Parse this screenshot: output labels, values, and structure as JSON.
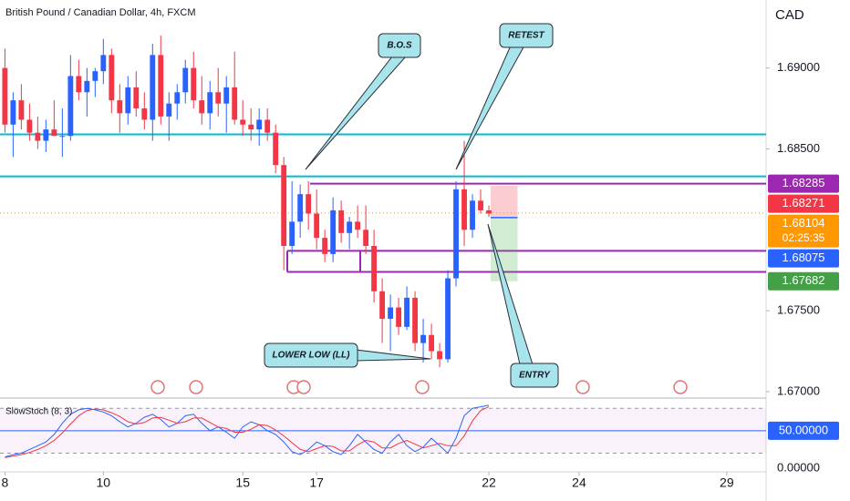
{
  "header": {
    "title": "British Pound / Canadian Dollar, 4h, FXCM",
    "currency": "CAD"
  },
  "chart_data": [
    {
      "type": "candlestick",
      "annotations": [
        "B.O.S",
        "RETEST",
        "LOWER LOW (LL)",
        "ENTRY"
      ],
      "up_color": "#2962ff",
      "down_color": "#f23645",
      "open": [
        1.69,
        1.6865,
        1.688,
        1.6868,
        1.686,
        1.6855,
        1.6862,
        1.6858,
        1.6858,
        1.6895,
        1.6885,
        1.6892,
        1.6898,
        1.6908,
        1.688,
        1.6872,
        1.6888,
        1.6875,
        1.6868,
        1.6908,
        1.687,
        1.6878,
        1.6885,
        1.69,
        1.688,
        1.6872,
        1.6885,
        1.6878,
        1.6888,
        1.6868,
        1.6865,
        1.6862,
        1.6868,
        1.686,
        1.684,
        1.679,
        1.6805,
        1.6822,
        1.681,
        1.6795,
        1.6785,
        1.6812,
        1.6798,
        1.6805,
        1.68,
        1.679,
        1.6762,
        1.6745,
        1.6752,
        1.674,
        1.6758,
        1.673,
        1.6735,
        1.6725,
        1.672,
        1.677,
        1.6825,
        1.68,
        1.6818,
        1.6812
      ],
      "high": [
        1.6912,
        1.6885,
        1.689,
        1.6878,
        1.687,
        1.6868,
        1.688,
        1.6875,
        1.6908,
        1.6905,
        1.69,
        1.69,
        1.6918,
        1.6912,
        1.689,
        1.6895,
        1.6898,
        1.6885,
        1.6915,
        1.692,
        1.6885,
        1.689,
        1.6905,
        1.691,
        1.6895,
        1.6892,
        1.69,
        1.6895,
        1.691,
        1.688,
        1.6875,
        1.6875,
        1.6875,
        1.6865,
        1.6845,
        1.683,
        1.6828,
        1.683,
        1.6825,
        1.68,
        1.682,
        1.6818,
        1.6808,
        1.6815,
        1.6815,
        1.68,
        1.677,
        1.676,
        1.6758,
        1.6765,
        1.6762,
        1.6745,
        1.6742,
        1.673,
        1.6775,
        1.683,
        1.6855,
        1.6822,
        1.6825,
        1.6815
      ],
      "low": [
        1.686,
        1.6845,
        1.6862,
        1.6855,
        1.685,
        1.6848,
        1.6858,
        1.6845,
        1.6855,
        1.688,
        1.687,
        1.6882,
        1.689,
        1.6872,
        1.686,
        1.6865,
        1.687,
        1.6862,
        1.6855,
        1.6865,
        1.6855,
        1.6868,
        1.6878,
        1.6875,
        1.6865,
        1.6862,
        1.687,
        1.686,
        1.6865,
        1.6858,
        1.6855,
        1.6852,
        1.6855,
        1.6835,
        1.6775,
        1.6785,
        1.6795,
        1.68,
        1.6788,
        1.678,
        1.678,
        1.6792,
        1.6788,
        1.6795,
        1.6785,
        1.6755,
        1.673,
        1.6725,
        1.6735,
        1.6738,
        1.6725,
        1.6718,
        1.672,
        1.6715,
        1.6718,
        1.6765,
        1.679,
        1.6795,
        1.681,
        1.6808
      ],
      "close": [
        1.6865,
        1.688,
        1.6868,
        1.686,
        1.6855,
        1.6862,
        1.6858,
        1.6858,
        1.6895,
        1.6885,
        1.6892,
        1.6898,
        1.6908,
        1.688,
        1.6872,
        1.6888,
        1.6875,
        1.6868,
        1.6908,
        1.687,
        1.6878,
        1.6885,
        1.69,
        1.688,
        1.6872,
        1.6885,
        1.6878,
        1.6888,
        1.6868,
        1.6865,
        1.6862,
        1.6868,
        1.686,
        1.684,
        1.679,
        1.6805,
        1.6822,
        1.681,
        1.6795,
        1.6785,
        1.6812,
        1.6798,
        1.6805,
        1.68,
        1.679,
        1.6762,
        1.6745,
        1.6752,
        1.674,
        1.6758,
        1.673,
        1.6735,
        1.6725,
        1.672,
        1.677,
        1.6825,
        1.68,
        1.6818,
        1.6812,
        1.681
      ],
      "xlim": [
        -0.6,
        92.8
      ],
      "xticks": [
        {
          "value": 0,
          "label": "8"
        },
        {
          "value": 12,
          "label": "10"
        },
        {
          "value": 29,
          "label": "15"
        },
        {
          "value": 38,
          "label": "17"
        },
        {
          "value": 59,
          "label": "22"
        },
        {
          "value": 70,
          "label": "24"
        },
        {
          "value": 88,
          "label": "29"
        }
      ],
      "ylim": [
        1.6696,
        1.6942
      ],
      "yticks": [
        {
          "value": 1.69,
          "label": "1.69000"
        },
        {
          "value": 1.685,
          "label": "1.68500"
        },
        {
          "value": 1.675,
          "label": "1.67500"
        },
        {
          "value": 1.67,
          "label": "1.67000"
        }
      ],
      "levels": [
        {
          "value": 1.6859,
          "color": "#00bcd4",
          "style": "full"
        },
        {
          "value": 1.6833,
          "color": "#00bcd4",
          "style": "full"
        },
        {
          "value": 1.6787,
          "color": "#9c27b0",
          "style": "range"
        },
        {
          "value": 1.6774,
          "color": "#9c27b0",
          "style": "range"
        }
      ],
      "price_labels": [
        {
          "value": 1.68285,
          "color": "#9c27b0"
        },
        {
          "value": 1.68271,
          "color": "#f23645"
        },
        {
          "value": 1.68104,
          "color": "#ff9800",
          "countdown": "02:25:35"
        },
        {
          "value": 1.68075,
          "color": "#2962ff"
        },
        {
          "value": 1.67682,
          "color": "#43a047"
        }
      ]
    },
    {
      "type": "line",
      "title": "SlowStoch (8, 3)",
      "series": [
        {
          "color": "#2962ff",
          "values": [
            15,
            18,
            20,
            25,
            30,
            35,
            45,
            60,
            72,
            78,
            80,
            78,
            75,
            70,
            62,
            55,
            60,
            68,
            72,
            65,
            55,
            60,
            70,
            72,
            60,
            50,
            55,
            48,
            40,
            55,
            62,
            58,
            50,
            45,
            35,
            22,
            18,
            25,
            35,
            30,
            22,
            18,
            30,
            45,
            35,
            25,
            20,
            35,
            45,
            30,
            22,
            28,
            40,
            30,
            20,
            40,
            70,
            80,
            82,
            84
          ]
        },
        {
          "color": "#f23645",
          "values": [
            14,
            16,
            18,
            21,
            25,
            30,
            37,
            47,
            59,
            70,
            77,
            79,
            78,
            74,
            69,
            62,
            59,
            61,
            67,
            68,
            64,
            60,
            62,
            67,
            67,
            61,
            55,
            53,
            48,
            48,
            52,
            58,
            57,
            51,
            43,
            34,
            25,
            22,
            26,
            30,
            29,
            23,
            23,
            31,
            37,
            35,
            27,
            27,
            33,
            37,
            32,
            27,
            30,
            33,
            30,
            30,
            43,
            63,
            77,
            82
          ]
        }
      ],
      "ylim": [
        -5,
        90
      ],
      "yticks": [
        {
          "value": 0,
          "label": "0.00000"
        }
      ],
      "bands": [
        20,
        80
      ],
      "midline": {
        "value": 50,
        "label": "50.00000",
        "color": "#2962ff"
      }
    }
  ]
}
